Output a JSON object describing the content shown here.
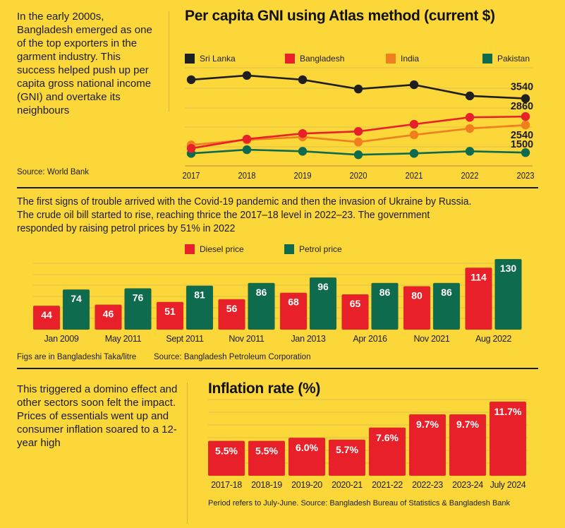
{
  "intro_text": "In the early 2000s, Bangladesh emerged as one of the top exporters in the garment industry. This success helped push up per capita gross national income (GNI) and overtake its neighbours",
  "gni_source": "Source: World Bank",
  "fuel_text": "The first signs of trouble arrived with the Covid-19 pandemic and then the invasion of Ukraine by Russia. The crude oil bill started to rise, reaching thrice the 2017–18 level in 2022–23. The government responded by raising petrol prices by 51% in 2022",
  "fuel_note": "Figs are in Bangladeshi Taka/litre",
  "fuel_source": "Source: Bangladesh Petroleum Corporation",
  "inflation_text": "This triggered a domino effect and other sectors soon felt the impact. Prices of essentials went up and consumer inflation soared to a 12-year high",
  "inflation_note": "Period refers to July-June. Source: Bangladesh Bureau of Statistics & Bangladesh Bank",
  "colors": {
    "background": "#fcd73a",
    "sri_lanka": "#1f1f1f",
    "bangladesh": "#e8202a",
    "india": "#f07f1e",
    "pakistan": "#0e6b4e"
  },
  "chart_data": [
    {
      "type": "line",
      "title": "Per capita GNI using Atlas method (current $)",
      "x": [
        "2017",
        "2018",
        "2019",
        "2020",
        "2021",
        "2022",
        "2023"
      ],
      "xlabel": "",
      "ylabel": "",
      "ylim": [
        1000,
        4700
      ],
      "grid": true,
      "legend": "top",
      "series": [
        {
          "name": "Sri Lanka",
          "color": "#1f1f1f",
          "values": [
            4250,
            4410,
            4250,
            3900,
            4060,
            3640,
            3540
          ],
          "end_label": "3540"
        },
        {
          "name": "Bangladesh",
          "color": "#e8202a",
          "values": [
            1660,
            2010,
            2220,
            2300,
            2570,
            2830,
            2860
          ],
          "end_label": "2860"
        },
        {
          "name": "India",
          "color": "#f07f1e",
          "values": [
            1790,
            1980,
            2090,
            1900,
            2170,
            2410,
            2540
          ],
          "end_label": "2540"
        },
        {
          "name": "Pakistan",
          "color": "#0e6b4e",
          "values": [
            1470,
            1610,
            1550,
            1420,
            1470,
            1550,
            1500
          ],
          "end_label": "1500"
        }
      ]
    },
    {
      "type": "bar",
      "title": "",
      "categories": [
        "Jan 2009",
        "May 2011",
        "Sept 2011",
        "Nov 2011",
        "Jan 2013",
        "Apr 2016",
        "Nov 2021",
        "Aug 2022"
      ],
      "series": [
        {
          "name": "Diesel price",
          "color": "#e8202a",
          "values": [
            44,
            46,
            51,
            56,
            68,
            65,
            80,
            114
          ]
        },
        {
          "name": "Petrol price",
          "color": "#0e6b4e",
          "values": [
            74,
            76,
            81,
            86,
            96,
            86,
            86,
            130
          ]
        }
      ],
      "ylabel": "Taka/litre",
      "ylim": [
        0,
        135
      ],
      "grid": true,
      "legend": "top-center"
    },
    {
      "type": "bar",
      "title": "Inflation rate (%)",
      "categories": [
        "2017-18",
        "2018-19",
        "2019-20",
        "2020-21",
        "2021-22",
        "2022-23",
        "2023-24",
        "July 2024"
      ],
      "values": [
        5.5,
        5.5,
        6.0,
        5.7,
        7.6,
        9.7,
        9.7,
        11.7
      ],
      "labels": [
        "5.5%",
        "5.5%",
        "6.0%",
        "5.7%",
        "7.6%",
        "9.7%",
        "9.7%",
        "11.7%"
      ],
      "color": "#e8202a",
      "ylim": [
        0,
        12
      ],
      "grid": true
    }
  ]
}
